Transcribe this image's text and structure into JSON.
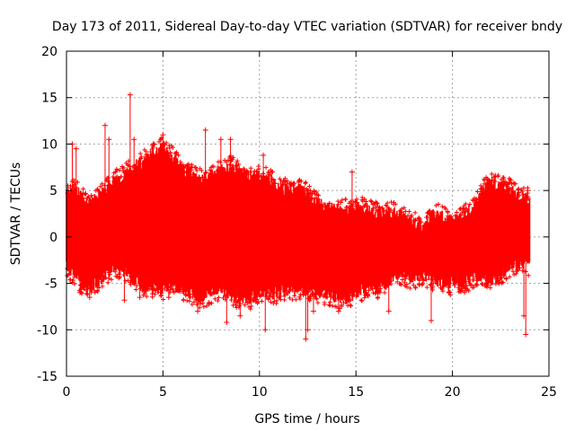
{
  "chart_data": {
    "type": "scatter",
    "title": "Day 173 of 2011, Sidereal Day-to-day VTEC variation (SDTVAR) for receiver bndy",
    "xlabel": "GPS time / hours",
    "ylabel": "SDTVAR / TECUs",
    "xlim": [
      0,
      25
    ],
    "ylim": [
      -15,
      20
    ],
    "xticks": [
      0,
      5,
      10,
      15,
      20,
      25
    ],
    "yticks": [
      -15,
      -10,
      -5,
      0,
      5,
      10,
      15,
      20
    ],
    "grid": true,
    "marker": "+",
    "color": "#ff0000",
    "envelope": {
      "x": [
        0,
        0.5,
        1,
        1.5,
        2,
        2.5,
        3,
        3.5,
        4,
        4.5,
        5,
        5.5,
        6,
        6.5,
        7,
        7.5,
        8,
        8.5,
        9,
        9.5,
        10,
        10.5,
        11,
        11.5,
        12,
        12.5,
        13,
        13.5,
        14,
        14.5,
        15,
        15.5,
        16,
        16.5,
        17,
        17.5,
        18,
        18.5,
        19,
        19.5,
        20,
        20.5,
        21,
        21.5,
        22,
        22.5,
        23,
        23.5,
        24
      ],
      "upper": [
        4.5,
        5.0,
        3.5,
        4.0,
        5.0,
        6.0,
        6.5,
        7.5,
        8.0,
        9.0,
        9.5,
        8.5,
        7.0,
        6.5,
        6.0,
        6.5,
        7.0,
        7.5,
        6.8,
        6.5,
        6.5,
        6.0,
        5.5,
        5.0,
        5.0,
        4.5,
        3.5,
        3.0,
        2.8,
        3.0,
        3.0,
        3.0,
        2.5,
        2.5,
        2.5,
        2.0,
        1.5,
        1.0,
        2.5,
        2.0,
        1.5,
        2.0,
        3.0,
        4.5,
        6.0,
        5.5,
        5.0,
        4.0,
        4.0
      ],
      "lower": [
        -3.0,
        -4.0,
        -5.5,
        -5.0,
        -4.0,
        -3.0,
        -3.5,
        -4.5,
        -5.0,
        -5.5,
        -5.5,
        -5.0,
        -5.5,
        -6.0,
        -6.5,
        -6.0,
        -5.5,
        -6.0,
        -6.5,
        -6.5,
        -6.0,
        -6.0,
        -6.0,
        -5.5,
        -5.5,
        -5.5,
        -6.0,
        -6.0,
        -6.5,
        -6.5,
        -6.0,
        -5.5,
        -5.5,
        -5.0,
        -4.0,
        -4.0,
        -4.5,
        -4.0,
        -4.5,
        -5.0,
        -5.0,
        -5.0,
        -4.5,
        -4.0,
        -4.5,
        -4.0,
        -3.0,
        -2.5,
        -3.0
      ]
    },
    "outliers": [
      [
        3.3,
        15.3
      ],
      [
        0.3,
        10.0
      ],
      [
        0.5,
        9.5
      ],
      [
        2.0,
        12.0
      ],
      [
        2.2,
        10.5
      ],
      [
        3.5,
        10.5
      ],
      [
        4.5,
        10.0
      ],
      [
        5.0,
        11.0
      ],
      [
        7.2,
        11.5
      ],
      [
        8.0,
        10.5
      ],
      [
        8.5,
        10.5
      ],
      [
        10.2,
        8.8
      ],
      [
        14.8,
        7.0
      ],
      [
        23.9,
        5.0
      ],
      [
        3.0,
        -6.8
      ],
      [
        3.8,
        -6.5
      ],
      [
        6.8,
        -8.0
      ],
      [
        8.3,
        -9.2
      ],
      [
        9.0,
        -8.5
      ],
      [
        10.3,
        -10.0
      ],
      [
        12.5,
        -10.0
      ],
      [
        12.4,
        -11.0
      ],
      [
        12.8,
        -8.0
      ],
      [
        14.1,
        -8.0
      ],
      [
        16.7,
        -8.0
      ],
      [
        18.9,
        -9.0
      ],
      [
        21.9,
        -4.5
      ],
      [
        23.8,
        -10.5
      ],
      [
        23.7,
        -8.5
      ],
      [
        1.2,
        -6.5
      ],
      [
        0.7,
        -6.0
      ],
      [
        5.3,
        -6.5
      ]
    ]
  }
}
